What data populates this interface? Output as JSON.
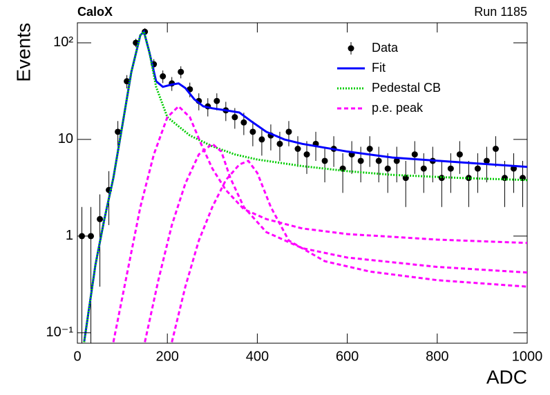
{
  "chart_data": {
    "type": "line",
    "title": "CaloX",
    "subtitle": "Run 1185",
    "x_label": "ADC",
    "y_label": "Events",
    "log_y": true,
    "legend": "upper right",
    "xlim": [
      0,
      1000
    ],
    "xticks": [
      0,
      200,
      400,
      600,
      800,
      1000
    ],
    "ylim": [
      0.078,
      161
    ],
    "yticks": [
      {
        "value": 0.1,
        "label": "10⁻¹"
      },
      1,
      10,
      {
        "value": 100,
        "label": "10²"
      }
    ],
    "series": [
      {
        "name": "Data",
        "style": "points",
        "color": "#000000",
        "x": [
          10,
          30,
          50,
          70,
          90,
          110,
          130,
          150,
          170,
          190,
          210,
          230,
          250,
          270,
          290,
          310,
          330,
          350,
          370,
          390,
          410,
          430,
          450,
          470,
          490,
          510,
          530,
          550,
          570,
          590,
          610,
          630,
          650,
          670,
          690,
          710,
          730,
          750,
          770,
          790,
          810,
          830,
          850,
          870,
          890,
          910,
          930,
          950,
          970,
          990
        ],
        "values": [
          1,
          1,
          1.5,
          3,
          12,
          40,
          100,
          130,
          60,
          45,
          38,
          50,
          33,
          25,
          22,
          25,
          20,
          17,
          15,
          12,
          10,
          11,
          9,
          12,
          8,
          7,
          9,
          6,
          8,
          5,
          7,
          6,
          8,
          6,
          5,
          6,
          4,
          7,
          5,
          6,
          4,
          5,
          7,
          4,
          5,
          6,
          8,
          4,
          5,
          4
        ],
        "errors": [
          1,
          1,
          1.2,
          1.7,
          3.5,
          6.3,
          10,
          11.4,
          7.7,
          6.7,
          6.2,
          7.1,
          5.7,
          5,
          4.7,
          5,
          4.5,
          4.1,
          3.9,
          3.5,
          3.2,
          3.3,
          3,
          3.5,
          2.8,
          2.6,
          3,
          2.4,
          2.8,
          2.2,
          2.6,
          2.4,
          2.8,
          2.4,
          2.2,
          2.4,
          2,
          2.6,
          2.2,
          2.4,
          2,
          2.2,
          2.6,
          2,
          2.2,
          2.4,
          2.8,
          2,
          2.2,
          2
        ]
      },
      {
        "name": "Fit",
        "style": "solid",
        "color": "#0000ff",
        "x": [
          15,
          40,
          60,
          80,
          100,
          120,
          140,
          148,
          160,
          175,
          190,
          210,
          225,
          240,
          260,
          280,
          300,
          330,
          360,
          390,
          420,
          460,
          500,
          600,
          700,
          850,
          1000
        ],
        "values": [
          0.08,
          0.5,
          1.5,
          4,
          14,
          50,
          120,
          130,
          80,
          40,
          35,
          37,
          38,
          34,
          26,
          22,
          21,
          20,
          19,
          15,
          12,
          10,
          9,
          7.5,
          6.5,
          5.8,
          5.2
        ]
      },
      {
        "name": "Pedestal CB",
        "style": "dotted",
        "color": "#00cc00",
        "x": [
          15,
          40,
          60,
          80,
          100,
          120,
          140,
          148,
          160,
          175,
          200,
          250,
          300,
          350,
          400,
          500,
          600,
          700,
          850,
          1000
        ],
        "values": [
          0.08,
          0.5,
          1.5,
          4,
          14,
          50,
          120,
          130,
          80,
          35,
          17,
          11,
          8.5,
          7,
          6.2,
          5.3,
          4.7,
          4.3,
          4,
          3.8
        ]
      },
      {
        "name": "p.e. peak",
        "style": "dashed",
        "color": "#ff00ff",
        "x": [
          80,
          110,
          140,
          170,
          200,
          225,
          250,
          275,
          300,
          330,
          370,
          420,
          500,
          600,
          800,
          1000
        ],
        "values": [
          0.08,
          0.4,
          2,
          7,
          17,
          22,
          17,
          9,
          5,
          3,
          1.9,
          1.5,
          1.2,
          1.05,
          0.92,
          0.85
        ]
      },
      {
        "name": null,
        "style": "dashed",
        "color": "#ff00ff",
        "x": [
          150,
          180,
          210,
          240,
          270,
          300,
          320,
          340,
          370,
          420,
          500,
          600,
          800,
          1000
        ],
        "values": [
          0.08,
          0.35,
          1.3,
          3.5,
          7,
          9,
          7.5,
          4,
          2,
          1.1,
          0.75,
          0.6,
          0.48,
          0.42
        ]
      },
      {
        "name": null,
        "style": "dashed",
        "color": "#ff00ff",
        "x": [
          210,
          240,
          270,
          300,
          330,
          360,
          380,
          400,
          430,
          470,
          550,
          650,
          800,
          1000
        ],
        "values": [
          0.08,
          0.3,
          0.9,
          2,
          3.8,
          5.5,
          6,
          4.5,
          2,
          0.9,
          0.55,
          0.43,
          0.35,
          0.3
        ]
      }
    ]
  }
}
